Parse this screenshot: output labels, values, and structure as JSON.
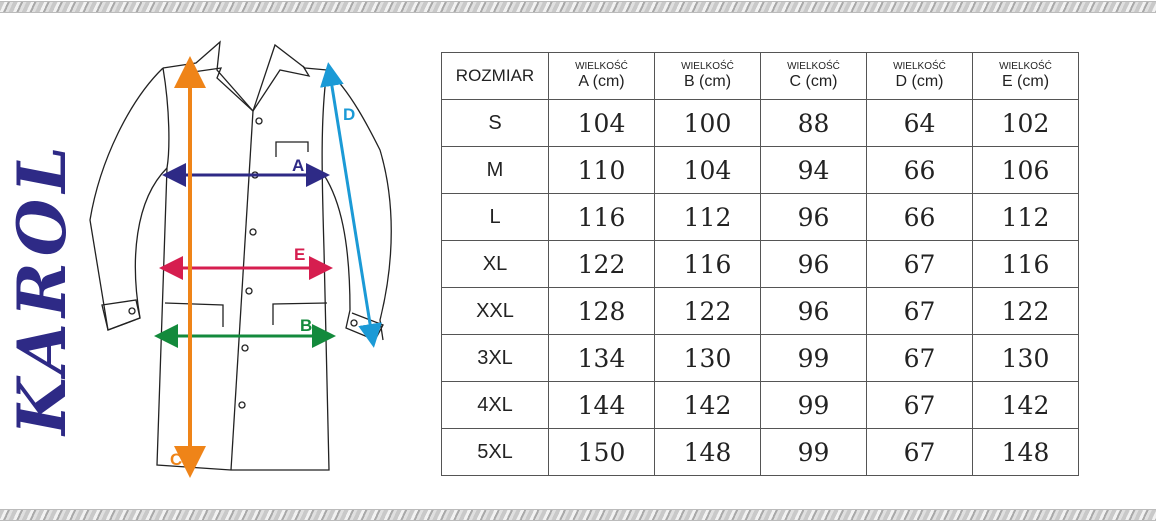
{
  "brand": "KAROL",
  "diagram": {
    "labels": {
      "A": "A",
      "B": "B",
      "C": "C",
      "D": "D",
      "E": "E"
    },
    "colors": {
      "A": "#2e2a86",
      "B": "#138a3c",
      "C": "#ef8418",
      "D": "#1b9ad6",
      "E": "#d61e4f"
    }
  },
  "table": {
    "size_header": "ROZMIAR",
    "columns": [
      {
        "small": "WIELKOŚĆ",
        "label": "A (cm)"
      },
      {
        "small": "WIELKOŚĆ",
        "label": "B (cm)"
      },
      {
        "small": "WIELKOŚĆ",
        "label": "C (cm)"
      },
      {
        "small": "WIELKOŚĆ",
        "label": "D (cm)"
      },
      {
        "small": "WIELKOŚĆ",
        "label": "E (cm)"
      }
    ],
    "rows": [
      {
        "size": "S",
        "values": [
          "104",
          "100",
          "88",
          "64",
          "102"
        ]
      },
      {
        "size": "M",
        "values": [
          "110",
          "104",
          "94",
          "66",
          "106"
        ]
      },
      {
        "size": "L",
        "values": [
          "116",
          "112",
          "96",
          "66",
          "112"
        ]
      },
      {
        "size": "XL",
        "values": [
          "122",
          "116",
          "96",
          "67",
          "116"
        ]
      },
      {
        "size": "XXL",
        "values": [
          "128",
          "122",
          "96",
          "67",
          "122"
        ]
      },
      {
        "size": "3XL",
        "values": [
          "134",
          "130",
          "99",
          "67",
          "130"
        ]
      },
      {
        "size": "4XL",
        "values": [
          "144",
          "142",
          "99",
          "67",
          "142"
        ]
      },
      {
        "size": "5XL",
        "values": [
          "150",
          "148",
          "99",
          "67",
          "148"
        ]
      }
    ]
  }
}
